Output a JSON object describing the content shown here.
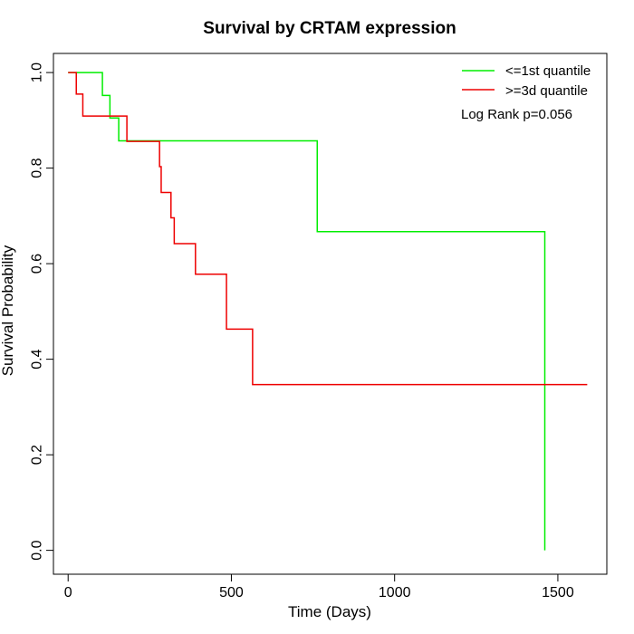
{
  "chart_data": {
    "type": "line",
    "title": "Survival by CRTAM expression",
    "xlabel": "Time (Days)",
    "ylabel": "Survival Probability",
    "xlim": [
      -45,
      1650
    ],
    "ylim": [
      -0.05,
      1.04
    ],
    "x_ticks": [
      0,
      500,
      1000,
      1500
    ],
    "x_tick_labels": [
      "0",
      "500",
      "1000",
      "1500"
    ],
    "y_ticks": [
      0.0,
      0.2,
      0.4,
      0.6,
      0.8,
      1.0
    ],
    "y_tick_labels": [
      "0.0",
      "0.2",
      "0.4",
      "0.6",
      "0.8",
      "1.0"
    ],
    "grid": false,
    "legend_position": "top-right",
    "annotation": "Log Rank p=0.056",
    "series": [
      {
        "name": "<=1st quantile",
        "color": "#00ee00",
        "step_x": [
          0,
          105,
          128,
          155,
          763,
          1460
        ],
        "step_y": [
          1.0,
          0.952,
          0.905,
          0.857,
          0.667,
          0.0
        ]
      },
      {
        "name": ">=3d quantile",
        "color": "#ee0000",
        "step_x": [
          0,
          25,
          45,
          180,
          280,
          285,
          315,
          325,
          390,
          485,
          565,
          1590
        ],
        "step_y": [
          1.0,
          0.955,
          0.909,
          0.856,
          0.803,
          0.749,
          0.696,
          0.642,
          0.578,
          0.463,
          0.347,
          0.347
        ]
      }
    ]
  }
}
